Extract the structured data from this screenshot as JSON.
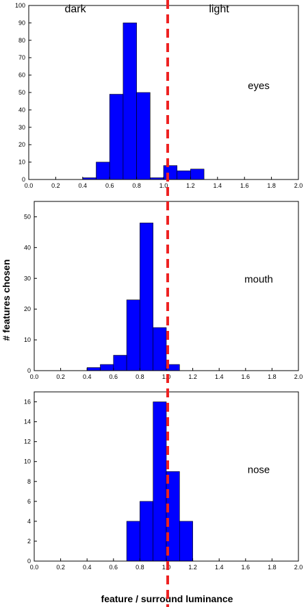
{
  "figure": {
    "region_left_label": "dark",
    "region_right_label": "light",
    "ylabel": "# features chosen",
    "xlabel": "feature / surround luminance"
  },
  "colors": {
    "bar": "#0000ff",
    "bar_edge": "#000000",
    "reference_line": "#ee2222"
  },
  "chart_data": [
    {
      "type": "bar",
      "panel_label": "eyes",
      "bin_width": 0.1,
      "bin_starts": [
        0.4,
        0.5,
        0.6,
        0.7,
        0.8,
        0.9,
        1.0,
        1.1,
        1.2,
        1.3
      ],
      "values": [
        1,
        10,
        49,
        90,
        50,
        1,
        8,
        5,
        6,
        0
      ],
      "xlim": [
        0.0,
        2.0
      ],
      "ylim": [
        0,
        100
      ],
      "xticks": [
        "0.0",
        "0.2",
        "0.4",
        "0.6",
        "0.8",
        "1.0",
        "1.2",
        "1.4",
        "1.6",
        "1.8",
        "2.0"
      ],
      "yticks": [
        "0",
        "10",
        "20",
        "30",
        "40",
        "50",
        "60",
        "70",
        "80",
        "90",
        "100"
      ],
      "reference_x": 1.0
    },
    {
      "type": "bar",
      "panel_label": "mouth",
      "bin_width": 0.1,
      "bin_starts": [
        0.4,
        0.5,
        0.6,
        0.7,
        0.8,
        0.9,
        1.0,
        1.1,
        1.2
      ],
      "values": [
        1,
        2,
        5,
        23,
        48,
        14,
        2,
        0,
        0
      ],
      "xlim": [
        0.0,
        2.0
      ],
      "ylim": [
        0,
        55
      ],
      "xticks": [
        "0.0",
        "0.2",
        "0.4",
        "0.6",
        "0.8",
        "1.0",
        "1.2",
        "1.4",
        "1.6",
        "1.8",
        "2.0"
      ],
      "yticks": [
        "0",
        "10",
        "20",
        "30",
        "40",
        "50"
      ],
      "reference_x": 1.0
    },
    {
      "type": "bar",
      "panel_label": "nose",
      "bin_width": 0.1,
      "bin_starts": [
        0.7,
        0.8,
        0.9,
        1.0,
        1.1,
        1.2
      ],
      "values": [
        4,
        6,
        16,
        9,
        4,
        0
      ],
      "xlim": [
        0.0,
        2.0
      ],
      "ylim": [
        0,
        17
      ],
      "xticks": [
        "0.0",
        "0.2",
        "0.4",
        "0.6",
        "0.8",
        "1.0",
        "1.2",
        "1.4",
        "1.6",
        "1.8",
        "2.0"
      ],
      "yticks": [
        "0",
        "2",
        "4",
        "6",
        "8",
        "10",
        "12",
        "14",
        "16"
      ],
      "reference_x": 1.0
    }
  ]
}
